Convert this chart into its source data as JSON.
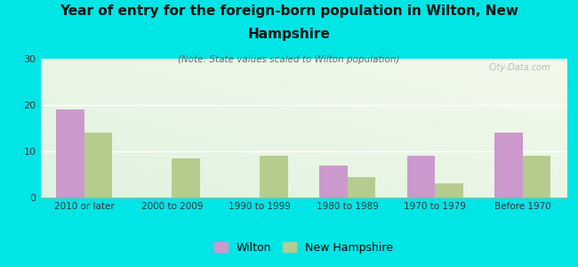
{
  "categories": [
    "2010 or later",
    "2000 to 2009",
    "1990 to 1999",
    "1980 to 1989",
    "1970 to 1979",
    "Before 1970"
  ],
  "wilton_values": [
    19,
    0,
    0,
    7,
    9,
    14
  ],
  "nh_values": [
    14,
    8.5,
    9,
    4.5,
    3,
    9
  ],
  "wilton_color": "#cc99cc",
  "nh_color": "#b5cc8e",
  "title_line1": "Year of entry for the foreign-born population in Wilton, New",
  "title_line2": "Hampshire",
  "subtitle": "(Note: State values scaled to Wilton population)",
  "ylim": [
    0,
    30
  ],
  "yticks": [
    0,
    10,
    20,
    30
  ],
  "background_color": "#00e5e5",
  "title_fontsize": 11,
  "subtitle_fontsize": 7.5,
  "legend_labels": [
    "Wilton",
    "New Hampshire"
  ],
  "watermark": "City-Data.com"
}
